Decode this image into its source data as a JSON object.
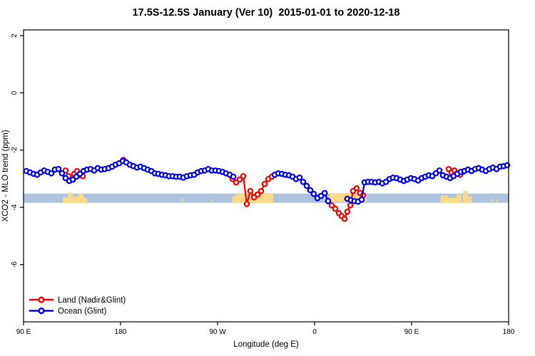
{
  "window": {
    "background": "#ffffff"
  },
  "chart_data": {
    "type": "line",
    "title": "17.5S-12.5S January (Ver 10)  2015-01-01 to 2020-12-18",
    "xlabel": "Longitude (deg E)",
    "ylabel": "XCO2 - MLO trend (ppm)",
    "xlim": [
      90,
      540
    ],
    "ylim": [
      -8,
      2.2
    ],
    "grid": false,
    "x_ticks": [
      {
        "x": 90,
        "label": "90 E"
      },
      {
        "x": 180,
        "label": "180"
      },
      {
        "x": 270,
        "label": "90 W"
      },
      {
        "x": 360,
        "label": "0"
      },
      {
        "x": 450,
        "label": "90 E"
      },
      {
        "x": 540,
        "label": "180"
      }
    ],
    "y_ticks": [
      {
        "y": 2,
        "label": "2"
      },
      {
        "y": 0,
        "label": "0"
      },
      {
        "y": -2,
        "label": "-2"
      },
      {
        "y": -4,
        "label": "-4"
      },
      {
        "y": -6,
        "label": "-6"
      }
    ],
    "reference_band": {
      "y_from": -3.52,
      "y_to": -3.84,
      "color": "#AEC3DF"
    },
    "land_shading": {
      "color": "#FFD98B",
      "patches": [
        {
          "x_from": 126.4,
          "x_to": 131.0,
          "top": -3.65,
          "bottom": -3.85
        },
        {
          "x_from": 131.0,
          "x_to": 135.7,
          "top": -3.48,
          "bottom": -3.85
        },
        {
          "x_from": 135.7,
          "x_to": 141.0,
          "top": -3.62,
          "bottom": -3.85
        },
        {
          "x_from": 141.0,
          "x_to": 145.6,
          "top": -3.53,
          "bottom": -3.85
        },
        {
          "x_from": 145.6,
          "x_to": 148.2,
          "top": -3.67,
          "bottom": -3.85
        },
        {
          "x_from": 147.8,
          "x_to": 149.2,
          "top": -3.7,
          "bottom": -3.8
        },
        {
          "x_from": 236.8,
          "x_to": 238.2,
          "top": -3.7,
          "bottom": -3.8
        },
        {
          "x_from": 264.0,
          "x_to": 265.4,
          "top": -3.72,
          "bottom": -3.8
        },
        {
          "x_from": 283.9,
          "x_to": 287.2,
          "top": -3.6,
          "bottom": -3.85
        },
        {
          "x_from": 287.2,
          "x_to": 321.6,
          "top": -3.5,
          "bottom": -3.85
        },
        {
          "x_from": 373.9,
          "x_to": 408.3,
          "top": -3.5,
          "bottom": -3.81
        },
        {
          "x_from": 477.1,
          "x_to": 483.7,
          "top": -3.58,
          "bottom": -3.85
        },
        {
          "x_from": 483.7,
          "x_to": 491.7,
          "top": -3.66,
          "bottom": -3.85
        },
        {
          "x_from": 491.7,
          "x_to": 496.3,
          "top": -3.55,
          "bottom": -3.85
        },
        {
          "x_from": 497.7,
          "x_to": 502.3,
          "top": -3.42,
          "bottom": -3.85
        },
        {
          "x_from": 502.3,
          "x_to": 505.6,
          "top": -3.62,
          "bottom": -3.85
        },
        {
          "x_from": 524.7,
          "x_to": 526.1,
          "top": -3.7,
          "bottom": -3.8
        },
        {
          "x_from": 528.1,
          "x_to": 529.5,
          "top": -3.72,
          "bottom": -3.8
        }
      ]
    },
    "series": [
      {
        "name": "Land (Nadir&Glint)",
        "color": "#FF0000",
        "marker": "open-circle",
        "segments": [
          [
            [
              129.0,
              -2.71
            ],
            [
              131.7,
              -2.91
            ],
            [
              134.3,
              -3.03
            ],
            [
              137.0,
              -2.83
            ],
            [
              139.6,
              -2.73
            ],
            [
              142.3,
              -2.88
            ],
            [
              144.9,
              -2.91
            ]
          ],
          [
            [
              182.6,
              -2.34
            ]
          ],
          [
            [
              283.9,
              -3.01
            ],
            [
              287.2,
              -3.13
            ],
            [
              290.5,
              -3.03
            ],
            [
              293.8,
              -2.91
            ],
            [
              297.1,
              -3.88
            ],
            [
              300.4,
              -3.43
            ],
            [
              303.8,
              -3.65
            ],
            [
              307.1,
              -3.55
            ],
            [
              310.4,
              -3.43
            ],
            [
              313.7,
              -3.18
            ],
            [
              317.0,
              -3.01
            ],
            [
              320.3,
              -2.93
            ]
          ],
          [
            [
              372.6,
              -3.78
            ],
            [
              375.9,
              -3.93
            ],
            [
              379.2,
              -4.05
            ],
            [
              382.5,
              -4.2
            ],
            [
              385.1,
              -4.3
            ],
            [
              387.8,
              -4.4
            ],
            [
              390.4,
              -4.15
            ],
            [
              393.1,
              -3.93
            ],
            [
              395.7,
              -3.43
            ],
            [
              399.0,
              -3.33
            ],
            [
              402.3,
              -3.5
            ],
            [
              405.0,
              -3.58
            ]
          ],
          [
            [
              484.4,
              -2.66
            ],
            [
              487.0,
              -2.78
            ],
            [
              489.7,
              -2.71
            ],
            [
              492.4,
              -2.81
            ],
            [
              495.0,
              -2.86
            ],
            [
              497.7,
              -2.76
            ]
          ]
        ]
      },
      {
        "name": "Ocean (Glint)",
        "color": "#0000FF",
        "marker": "open-circle",
        "segments": [
          [
            [
              92.6,
              -2.73
            ],
            [
              96.0,
              -2.78
            ],
            [
              99.3,
              -2.83
            ],
            [
              102.6,
              -2.86
            ],
            [
              105.9,
              -2.78
            ],
            [
              109.2,
              -2.71
            ],
            [
              112.5,
              -2.76
            ],
            [
              115.8,
              -2.81
            ],
            [
              119.1,
              -2.68
            ],
            [
              122.4,
              -2.66
            ],
            [
              125.7,
              -2.81
            ],
            [
              129.0,
              -2.98
            ],
            [
              132.4,
              -3.08
            ],
            [
              135.7,
              -3.03
            ],
            [
              139.0,
              -2.93
            ],
            [
              142.3,
              -2.83
            ],
            [
              145.6,
              -2.73
            ],
            [
              148.9,
              -2.68
            ],
            [
              152.2,
              -2.66
            ],
            [
              155.5,
              -2.71
            ],
            [
              158.8,
              -2.63
            ],
            [
              162.1,
              -2.68
            ],
            [
              165.4,
              -2.66
            ],
            [
              168.8,
              -2.63
            ],
            [
              172.1,
              -2.58
            ],
            [
              175.4,
              -2.51
            ],
            [
              178.7,
              -2.46
            ],
            [
              182.0,
              -2.38
            ],
            [
              185.3,
              -2.43
            ],
            [
              188.6,
              -2.51
            ],
            [
              191.9,
              -2.56
            ],
            [
              195.2,
              -2.61
            ],
            [
              198.5,
              -2.58
            ],
            [
              201.8,
              -2.63
            ],
            [
              205.1,
              -2.68
            ],
            [
              208.5,
              -2.73
            ],
            [
              211.8,
              -2.81
            ],
            [
              215.1,
              -2.83
            ],
            [
              218.4,
              -2.86
            ],
            [
              221.7,
              -2.88
            ],
            [
              225.0,
              -2.91
            ],
            [
              228.3,
              -2.91
            ],
            [
              231.6,
              -2.93
            ],
            [
              234.9,
              -2.93
            ],
            [
              238.2,
              -2.96
            ],
            [
              241.5,
              -2.91
            ],
            [
              244.9,
              -2.88
            ],
            [
              248.2,
              -2.86
            ],
            [
              251.5,
              -2.78
            ],
            [
              254.8,
              -2.73
            ],
            [
              258.1,
              -2.71
            ],
            [
              261.4,
              -2.66
            ],
            [
              264.7,
              -2.71
            ],
            [
              268.0,
              -2.71
            ],
            [
              271.3,
              -2.73
            ],
            [
              274.6,
              -2.76
            ],
            [
              277.9,
              -2.81
            ],
            [
              281.3,
              -2.86
            ],
            [
              284.6,
              -2.93
            ]
          ],
          [
            [
              323.0,
              -2.86
            ],
            [
              326.3,
              -2.81
            ],
            [
              329.6,
              -2.83
            ],
            [
              332.9,
              -2.86
            ],
            [
              336.2,
              -2.88
            ],
            [
              339.5,
              -2.93
            ],
            [
              342.8,
              -3.01
            ],
            [
              346.1,
              -2.96
            ],
            [
              349.4,
              -3.11
            ],
            [
              352.7,
              -3.25
            ],
            [
              356.0,
              -3.4
            ],
            [
              359.3,
              -3.53
            ],
            [
              362.6,
              -3.68
            ],
            [
              366.0,
              -3.6
            ],
            [
              369.3,
              -3.5
            ],
            [
              372.6,
              -3.78
            ]
          ],
          [
            [
              390.4,
              -3.7
            ],
            [
              393.7,
              -3.75
            ],
            [
              397.0,
              -3.78
            ],
            [
              400.3,
              -3.8
            ],
            [
              403.7,
              -3.73
            ],
            [
              406.3,
              -3.13
            ],
            [
              409.6,
              -3.11
            ],
            [
              412.9,
              -3.11
            ],
            [
              416.2,
              -3.13
            ],
            [
              419.6,
              -3.11
            ],
            [
              422.9,
              -3.16
            ],
            [
              426.2,
              -3.11
            ],
            [
              429.5,
              -3.01
            ],
            [
              432.8,
              -2.96
            ],
            [
              436.1,
              -2.98
            ],
            [
              439.4,
              -3.03
            ],
            [
              442.7,
              -3.08
            ],
            [
              446.0,
              -3.03
            ],
            [
              449.3,
              -2.98
            ],
            [
              452.6,
              -3.01
            ],
            [
              456.0,
              -3.06
            ],
            [
              459.3,
              -2.98
            ],
            [
              462.6,
              -2.93
            ],
            [
              465.9,
              -2.88
            ],
            [
              469.2,
              -2.91
            ],
            [
              472.5,
              -2.81
            ],
            [
              475.8,
              -2.71
            ],
            [
              479.1,
              -2.88
            ],
            [
              482.4,
              -2.93
            ],
            [
              485.7,
              -2.98
            ],
            [
              489.0,
              -2.91
            ],
            [
              492.4,
              -2.83
            ],
            [
              495.7,
              -2.76
            ],
            [
              499.0,
              -2.73
            ],
            [
              502.3,
              -2.68
            ],
            [
              505.6,
              -2.73
            ],
            [
              508.9,
              -2.66
            ],
            [
              512.2,
              -2.63
            ],
            [
              515.5,
              -2.68
            ],
            [
              518.8,
              -2.73
            ],
            [
              522.1,
              -2.66
            ],
            [
              525.4,
              -2.61
            ],
            [
              528.8,
              -2.66
            ],
            [
              532.1,
              -2.58
            ],
            [
              535.4,
              -2.56
            ],
            [
              538.7,
              -2.53
            ]
          ]
        ]
      }
    ],
    "legend": {
      "position": "bottom-left",
      "entries": [
        {
          "label": "Land (Nadir&Glint)",
          "color": "#FF0000"
        },
        {
          "label": "Ocean (Glint)",
          "color": "#0000FF"
        }
      ]
    }
  }
}
